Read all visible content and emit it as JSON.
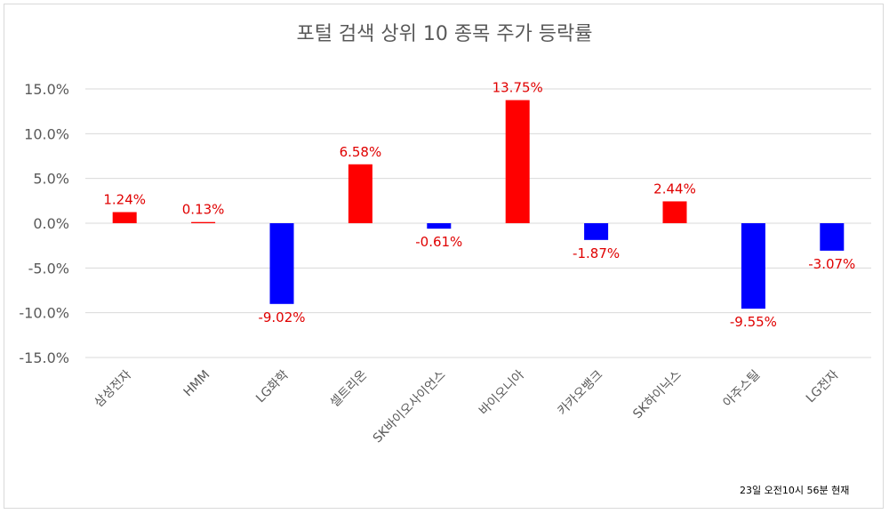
{
  "chart_data": {
    "type": "bar",
    "title": "포털 검색 상위 10 종목 주가 등락률",
    "categories": [
      "삼성전자",
      "HMM",
      "LG화학",
      "셀트리온",
      "SK바이오사이언스",
      "바이오니아",
      "카카오뱅크",
      "SK하이닉스",
      "아주스틸",
      "LG전자"
    ],
    "values": [
      1.24,
      0.13,
      -9.02,
      6.58,
      -0.61,
      13.75,
      -1.87,
      2.44,
      -9.55,
      -3.07
    ],
    "data_labels": [
      "1.24%",
      "0.13%",
      "-9.02%",
      "6.58%",
      "-0.61%",
      "13.75%",
      "-1.87%",
      "2.44%",
      "-9.55%",
      "-3.07%"
    ],
    "ylim": [
      -15,
      15
    ],
    "yticks": [
      15,
      10,
      5,
      0,
      -5,
      -10,
      -15
    ],
    "ytick_labels": [
      "15.0%",
      "10.0%",
      "5.0%",
      "0.0%",
      "-5.0%",
      "-10.0%",
      "-15.0%"
    ],
    "xlabel": "",
    "ylabel": "",
    "grid": true,
    "colors": {
      "positive": "#ff0000",
      "negative": "#0000ff",
      "label": "#e00000",
      "grid": "#d9d9d9"
    }
  },
  "footnote": "23일 오전10시 56분 현재"
}
